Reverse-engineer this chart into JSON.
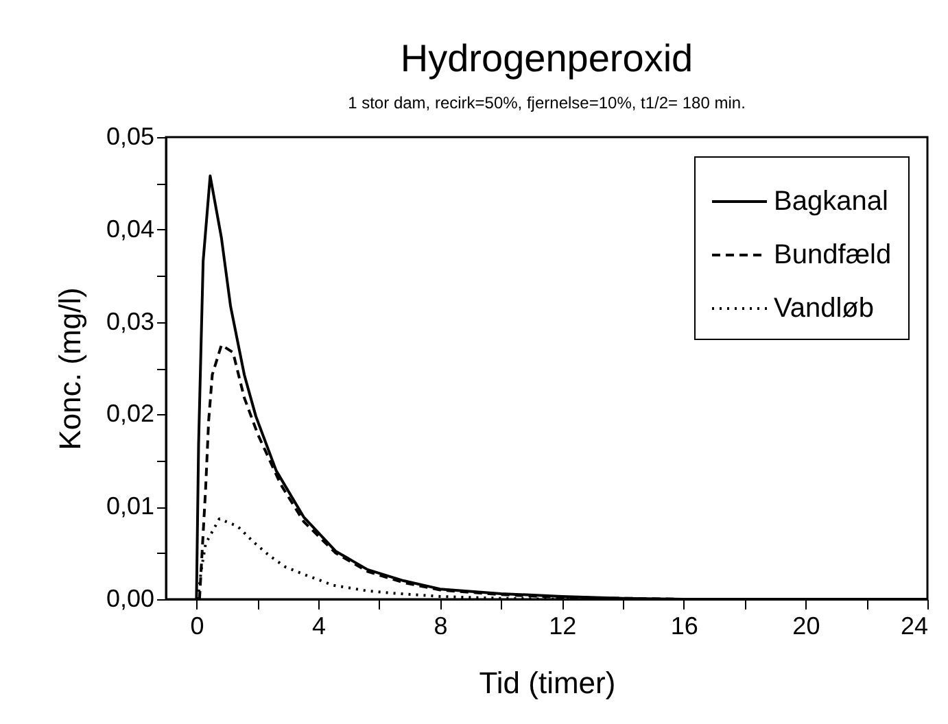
{
  "chart_data": {
    "type": "line",
    "title": "Hydrogenperoxid",
    "subtitle": "1 stor dam, recirk=50%, fjernelse=10%, t1/2= 180 min.",
    "xlabel": "Tid (timer)",
    "ylabel": "Konc. (mg/l)",
    "xlim": [
      -1,
      24
    ],
    "xticks": [
      0,
      {
        "value": 2,
        "label": null
      },
      4,
      {
        "value": 6,
        "label": null
      },
      8,
      {
        "value": 10,
        "label": null
      },
      12,
      {
        "value": 14,
        "label": null
      },
      16,
      {
        "value": 18,
        "label": null
      },
      20,
      {
        "value": 22,
        "label": null
      },
      24
    ],
    "ylim": [
      0,
      0.05
    ],
    "yticks": [
      {
        "value": 0,
        "label": "0,00"
      },
      {
        "value": 0.005,
        "label": null
      },
      {
        "value": 0.01,
        "label": "0,01"
      },
      {
        "value": 0.015,
        "label": null
      },
      {
        "value": 0.02,
        "label": "0,02"
      },
      {
        "value": 0.025,
        "label": null
      },
      {
        "value": 0.03,
        "label": "0,03"
      },
      {
        "value": 0.035,
        "label": null
      },
      {
        "value": 0.04,
        "label": "0,04"
      },
      {
        "value": 0.045,
        "label": null
      },
      {
        "value": 0.05,
        "label": "0,05"
      }
    ],
    "grid": false,
    "legend": "top right",
    "marker": "none",
    "series": [
      {
        "name": "Bagkanal",
        "color": "#000000",
        "line_style": "solid",
        "x": [
          0,
          0.07,
          0.22,
          0.45,
          0.82,
          1.12,
          1.57,
          1.95,
          2.62,
          3.52,
          4.57,
          5.62,
          6.8,
          8,
          10,
          12,
          14,
          16,
          20,
          24
        ],
        "values": [
          0,
          0.0168,
          0.0366,
          0.0458,
          0.0391,
          0.0317,
          0.0243,
          0.0198,
          0.0139,
          0.0089,
          0.0052,
          0.0032,
          0.002,
          0.0011,
          0.0006,
          0.0003,
          0.0001,
          0,
          0,
          0
        ]
      },
      {
        "name": "Bundfæld",
        "color": "#000000",
        "line_style": "dashed",
        "x": [
          0.1,
          0.3,
          0.4,
          0.52,
          0.82,
          1.2,
          1.57,
          2.02,
          2.77,
          3.52,
          4.57,
          5.62,
          6.8,
          8,
          10,
          12,
          14,
          16,
          20,
          24
        ],
        "values": [
          0,
          0.0119,
          0.0193,
          0.0243,
          0.0275,
          0.0267,
          0.0218,
          0.0178,
          0.0124,
          0.0084,
          0.005,
          0.003,
          0.0018,
          0.001,
          0.0005,
          0.0002,
          0.0001,
          0,
          0,
          0
        ]
      },
      {
        "name": "Vandløb",
        "color": "#000000",
        "line_style": "dotted",
        "x": [
          0.05,
          0.15,
          0.3,
          0.75,
          1.35,
          1.87,
          2.4,
          2.92,
          3.52,
          4.5,
          5.62,
          6.67,
          8,
          10,
          12,
          16,
          20,
          24
        ],
        "values": [
          0,
          0.003,
          0.006,
          0.0087,
          0.0079,
          0.0062,
          0.0047,
          0.0035,
          0.0027,
          0.0015,
          0.0009,
          0.0006,
          0.0003,
          0.0001,
          0,
          0,
          0,
          0
        ]
      }
    ]
  }
}
